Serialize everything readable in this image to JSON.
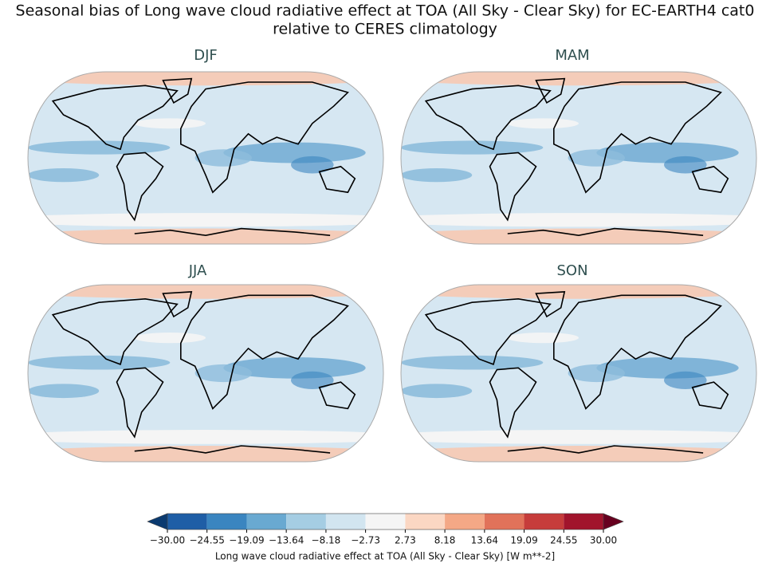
{
  "title": [
    "Seasonal bias of Long wave cloud radiative effect at TOA (All Sky - Clear Sky) for EC-EARTH4 cat0",
    "relative to CERES climatology"
  ],
  "panels": [
    {
      "title": "DJF"
    },
    {
      "title": "MAM"
    },
    {
      "title": "JJA"
    },
    {
      "title": "SON"
    }
  ],
  "colorbar": {
    "label": "Long wave cloud radiative effect at TOA (All Sky - Clear Sky) [W m**-2]",
    "lim": [
      -30,
      30
    ],
    "ticks": [
      {
        "value": -30,
        "label": "−30.00"
      },
      {
        "value": -24.55,
        "label": "−24.55"
      },
      {
        "value": -19.09,
        "label": "−19.09"
      },
      {
        "value": -13.64,
        "label": "−13.64"
      },
      {
        "value": -8.18,
        "label": "−8.18"
      },
      {
        "value": -2.73,
        "label": "−2.73"
      },
      {
        "value": 2.73,
        "label": "2.73"
      },
      {
        "value": 8.18,
        "label": "8.18"
      },
      {
        "value": 13.64,
        "label": "13.64"
      },
      {
        "value": 19.09,
        "label": "19.09"
      },
      {
        "value": 24.55,
        "label": "24.55"
      },
      {
        "value": 30,
        "label": "30.00"
      }
    ],
    "under_color": "#0b3a70",
    "colors": [
      "#1f5ea6",
      "#3a85c0",
      "#69a9d1",
      "#a5cde3",
      "#d2e5f0",
      "#f5f5f5",
      "#fbd7c3",
      "#f4a886",
      "#e1725a",
      "#c63c3b",
      "#a1142c"
    ],
    "over_color": "#67001f"
  }
}
